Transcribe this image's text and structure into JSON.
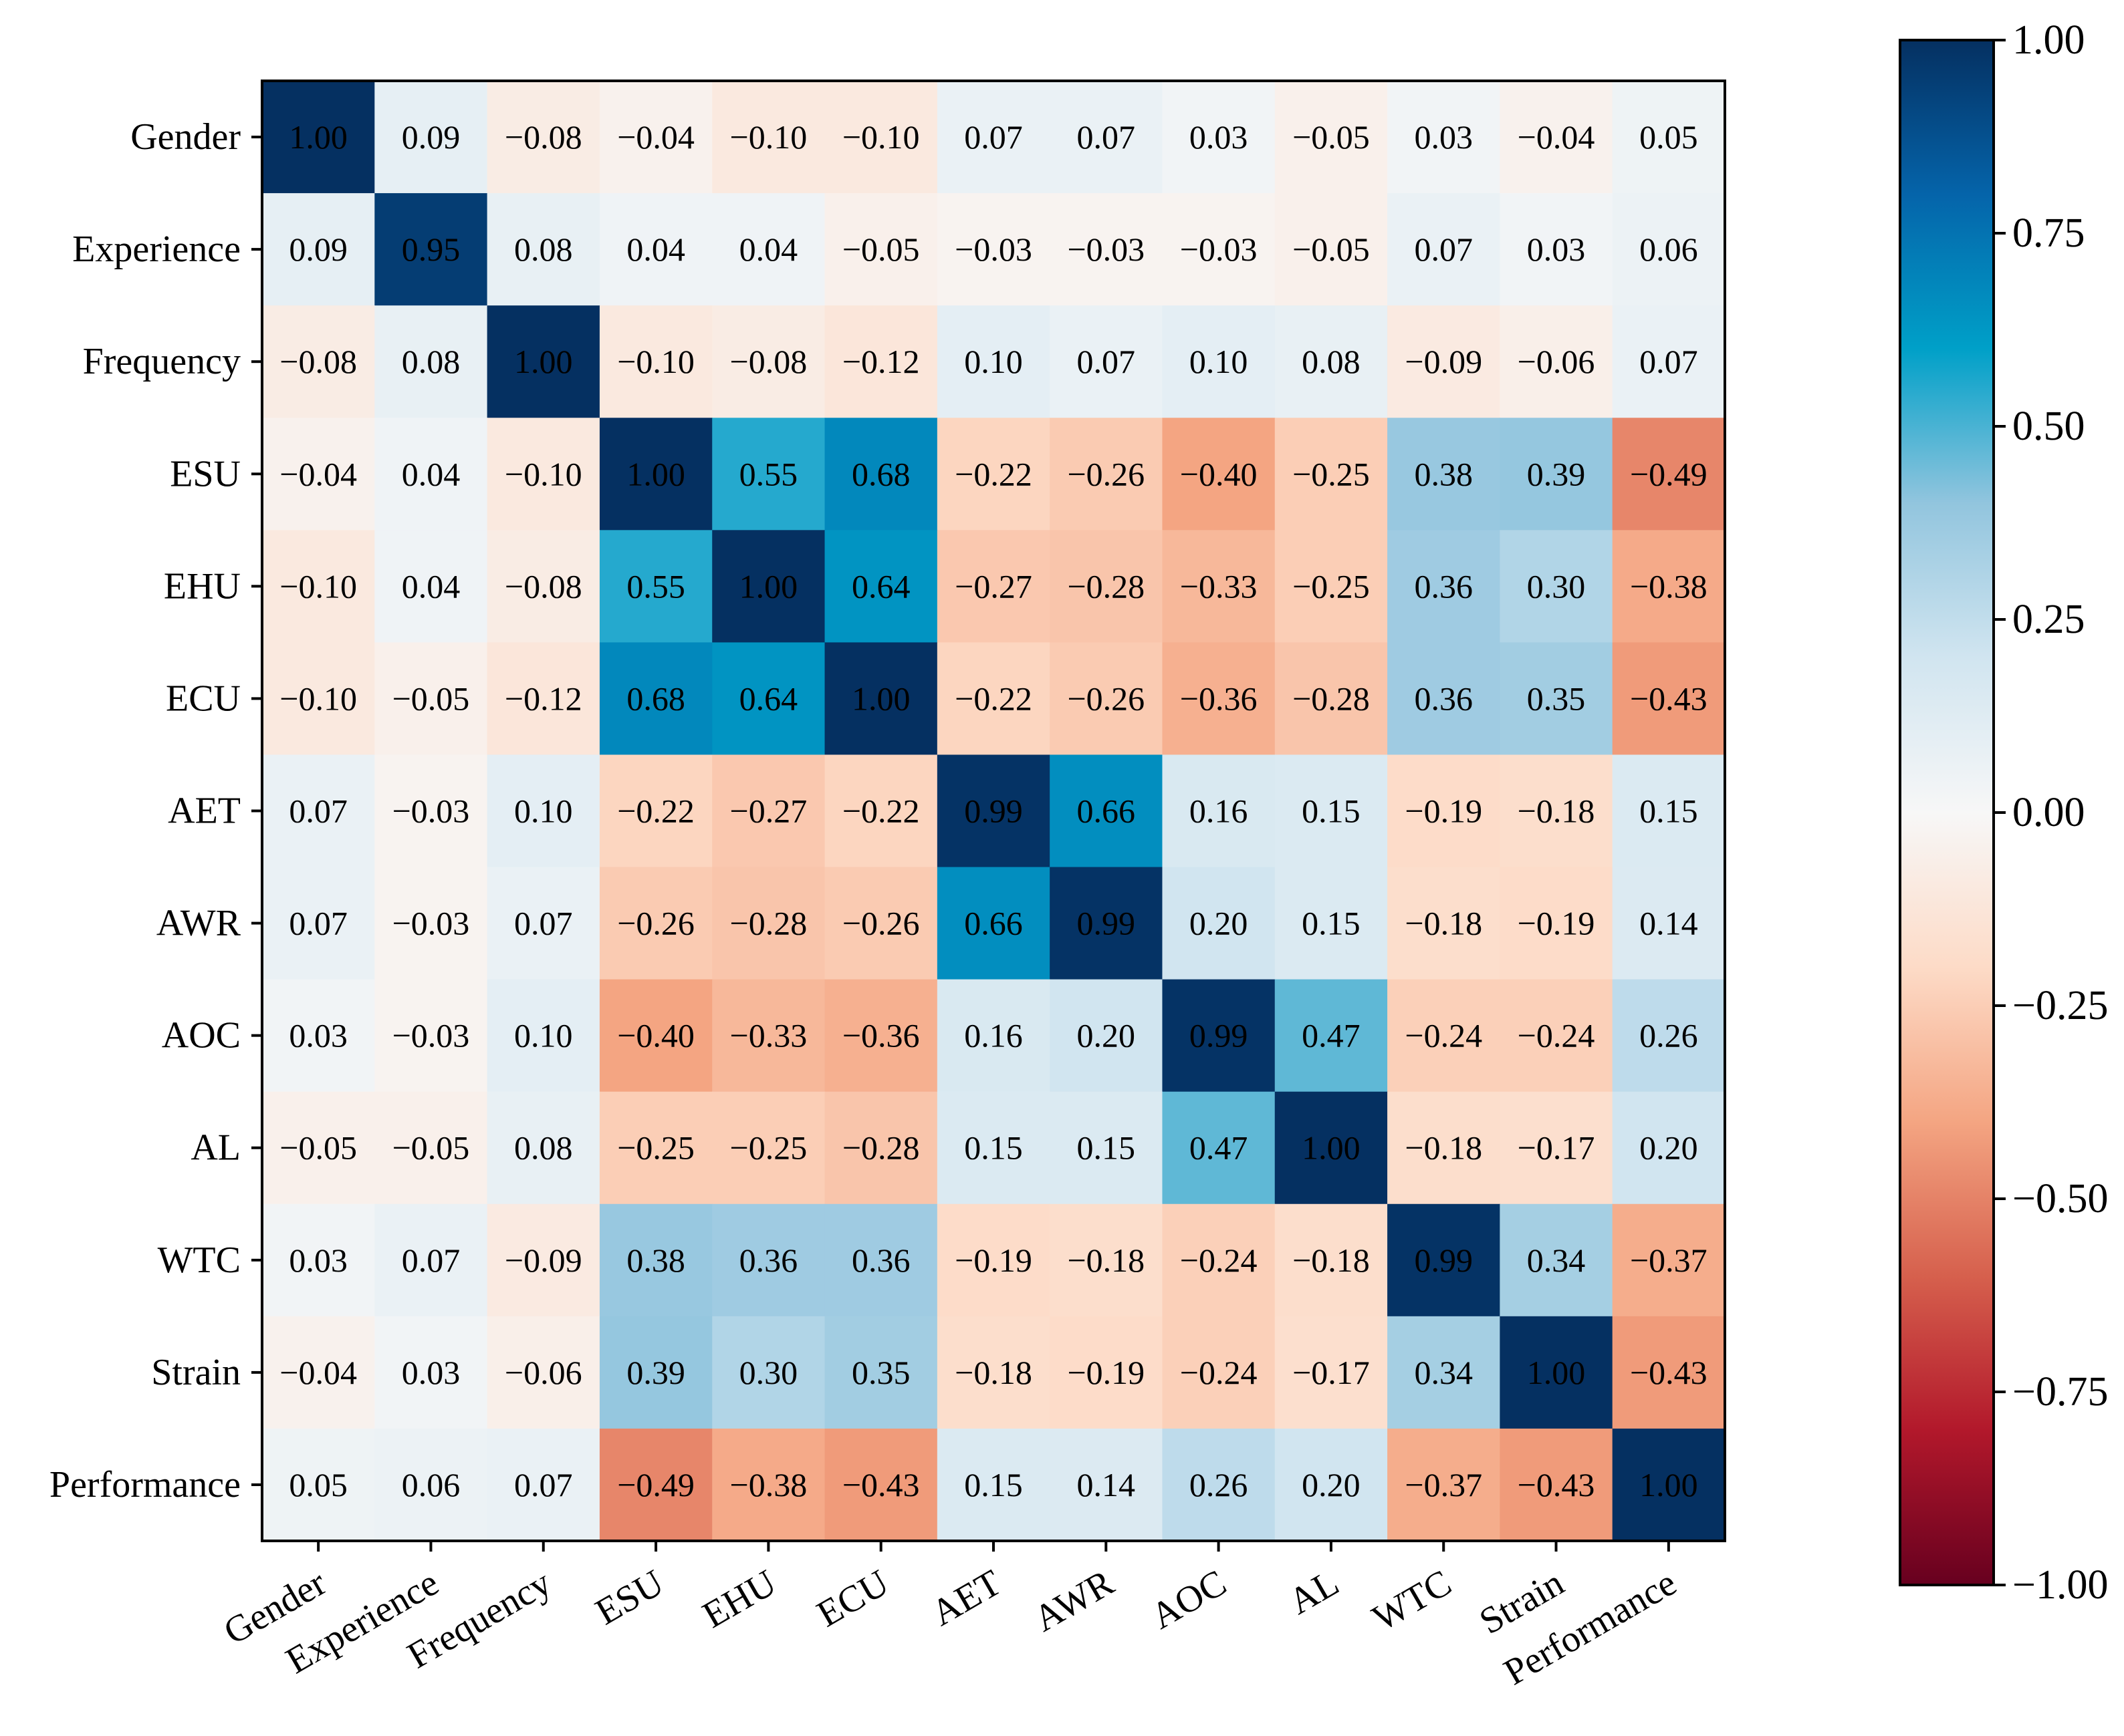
{
  "chart_data": {
    "type": "heatmap",
    "title": "",
    "xlabel": "",
    "ylabel": "",
    "labels": [
      "Gender",
      "Experience",
      "Frequency",
      "ESU",
      "EHU",
      "ECU",
      "AET",
      "AWR",
      "AOC",
      "AL",
      "WTC",
      "Strain",
      "Performance"
    ],
    "matrix": [
      [
        1.0,
        0.09,
        -0.08,
        -0.04,
        -0.1,
        -0.1,
        0.07,
        0.07,
        0.03,
        -0.05,
        0.03,
        -0.04,
        0.05
      ],
      [
        0.09,
        0.95,
        0.08,
        0.04,
        0.04,
        -0.05,
        -0.03,
        -0.03,
        -0.03,
        -0.05,
        0.07,
        0.03,
        0.06
      ],
      [
        -0.08,
        0.08,
        1.0,
        -0.1,
        -0.08,
        -0.12,
        0.1,
        0.07,
        0.1,
        0.08,
        -0.09,
        -0.06,
        0.07
      ],
      [
        -0.04,
        0.04,
        -0.1,
        1.0,
        0.55,
        0.68,
        -0.22,
        -0.26,
        -0.4,
        -0.25,
        0.38,
        0.39,
        -0.49
      ],
      [
        -0.1,
        0.04,
        -0.08,
        0.55,
        1.0,
        0.64,
        -0.27,
        -0.28,
        -0.33,
        -0.25,
        0.36,
        0.3,
        -0.38
      ],
      [
        -0.1,
        -0.05,
        -0.12,
        0.68,
        0.64,
        1.0,
        -0.22,
        -0.26,
        -0.36,
        -0.28,
        0.36,
        0.35,
        -0.43
      ],
      [
        0.07,
        -0.03,
        0.1,
        -0.22,
        -0.27,
        -0.22,
        0.99,
        0.66,
        0.16,
        0.15,
        -0.19,
        -0.18,
        0.15
      ],
      [
        0.07,
        -0.03,
        0.07,
        -0.26,
        -0.28,
        -0.26,
        0.66,
        0.99,
        0.2,
        0.15,
        -0.18,
        -0.19,
        0.14
      ],
      [
        0.03,
        -0.03,
        0.1,
        -0.4,
        -0.33,
        -0.36,
        0.16,
        0.2,
        0.99,
        0.47,
        -0.24,
        -0.24,
        0.26
      ],
      [
        -0.05,
        -0.05,
        0.08,
        -0.25,
        -0.25,
        -0.28,
        0.15,
        0.15,
        0.47,
        1.0,
        -0.18,
        -0.17,
        0.2
      ],
      [
        0.03,
        0.07,
        -0.09,
        0.38,
        0.36,
        0.36,
        -0.19,
        -0.18,
        -0.24,
        -0.18,
        0.99,
        0.34,
        -0.37
      ],
      [
        -0.04,
        0.03,
        -0.06,
        0.39,
        0.3,
        0.35,
        -0.18,
        -0.19,
        -0.24,
        -0.17,
        0.34,
        1.0,
        -0.43
      ],
      [
        0.05,
        0.06,
        0.07,
        -0.49,
        -0.38,
        -0.43,
        0.15,
        0.14,
        0.26,
        0.2,
        -0.37,
        -0.43,
        1.0
      ]
    ],
    "colorscale": "RdBu",
    "vmin": -1.0,
    "vmax": 1.0,
    "colorbar_ticks": [
      1.0,
      0.75,
      0.5,
      0.25,
      0.0,
      -0.25,
      -0.5,
      -0.75,
      -1.0
    ],
    "colorbar_tick_labels": [
      "1.00",
      "0.75",
      "0.50",
      "0.25",
      "0.00",
      "−0.25",
      "−0.50",
      "−0.75",
      "−1.00"
    ],
    "colorbar_placement": "right",
    "grid": false
  }
}
